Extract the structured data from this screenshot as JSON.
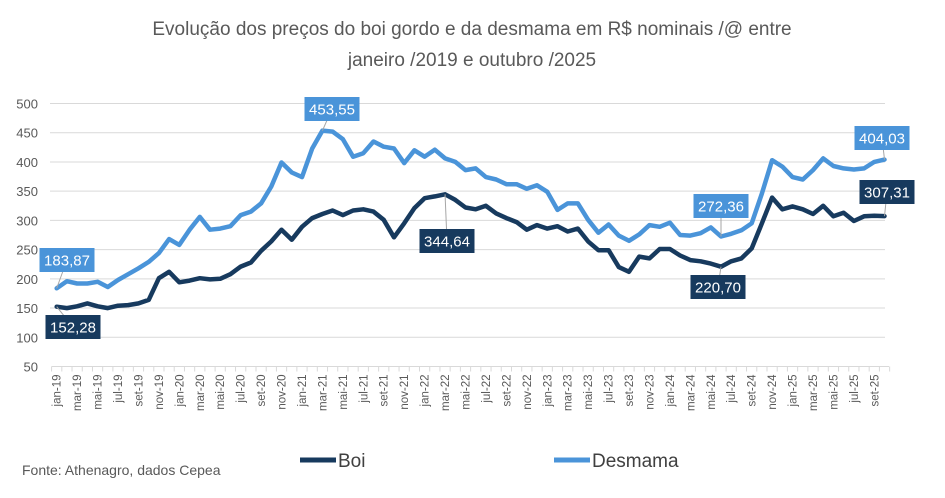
{
  "chart_data": {
    "type": "line",
    "title_line1": "Evolução dos preços do boi gordo e da desmama em R$ nominais /@ entre",
    "title_line2": "janeiro /2019 e outubro /2025",
    "xlabel": "",
    "ylabel": "",
    "ylim": [
      50,
      500
    ],
    "yticks": [
      "50",
      "100",
      "150",
      "200",
      "250",
      "300",
      "350",
      "400",
      "450",
      "500"
    ],
    "grid": true,
    "legend_placement": "bottom",
    "x": [
      "jan-19",
      "fev-19",
      "mar-19",
      "abr-19",
      "mai-19",
      "jun-19",
      "jul-19",
      "ago-19",
      "set-19",
      "out-19",
      "nov-19",
      "dez-19",
      "jan-20",
      "fev-20",
      "mar-20",
      "abr-20",
      "mai-20",
      "jun-20",
      "jul-20",
      "ago-20",
      "set-20",
      "out-20",
      "nov-20",
      "dez-20",
      "jan-21",
      "fev-21",
      "mar-21",
      "abr-21",
      "mai-21",
      "jun-21",
      "jul-21",
      "ago-21",
      "set-21",
      "out-21",
      "nov-21",
      "dez-21",
      "jan-22",
      "fev-22",
      "mar-22",
      "abr-22",
      "mai-22",
      "jun-22",
      "jul-22",
      "ago-22",
      "set-22",
      "out-22",
      "nov-22",
      "dez-22",
      "jan-23",
      "fev-23",
      "mar-23",
      "abr-23",
      "mai-23",
      "jun-23",
      "jul-23",
      "ago-23",
      "set-23",
      "out-23",
      "nov-23",
      "dez-23",
      "jan-24",
      "fev-24",
      "mar-24",
      "abr-24",
      "mai-24",
      "jun-24",
      "jul-24",
      "ago-24",
      "set-24",
      "out-24",
      "nov-24",
      "dez-24",
      "jan-25",
      "fev-25",
      "mar-25",
      "abr-25",
      "mai-25",
      "jun-25",
      "jul-25",
      "ago-25",
      "set-25",
      "out-25"
    ],
    "xtick_labels": [
      "jan-19",
      "mar-19",
      "mai-19",
      "jul-19",
      "set-19",
      "nov-19",
      "jan-20",
      "mar-20",
      "mai-20",
      "jul-20",
      "set-20",
      "nov-20",
      "jan-21",
      "mar-21",
      "mai-21",
      "jul-21",
      "set-21",
      "nov-21",
      "jan-22",
      "mar-22",
      "mai-22",
      "jul-22",
      "set-22",
      "nov-22",
      "jan-23",
      "mar-23",
      "mai-23",
      "jul-23",
      "set-23",
      "nov-23",
      "jan-24",
      "mar-24",
      "mai-24",
      "jul-24",
      "set-24",
      "nov-24",
      "jan-25",
      "mar-25",
      "mai-25",
      "jul-25",
      "set-25"
    ],
    "series": [
      {
        "name": "Boi",
        "color": "#173a5e",
        "values": [
          152.28,
          150,
          153,
          158,
          153,
          150,
          154,
          155,
          158,
          164,
          201,
          212,
          194,
          197,
          201,
          199,
          200,
          208,
          221,
          228,
          248,
          264,
          284,
          267,
          289,
          304,
          311,
          317,
          309,
          317,
          319,
          315,
          301,
          271,
          295,
          321,
          338,
          341,
          344.64,
          335,
          322,
          319,
          325,
          312,
          304,
          297,
          284,
          292,
          286,
          290,
          281,
          286,
          264,
          249,
          249,
          220,
          212,
          238,
          235,
          251,
          251,
          240,
          232,
          230,
          226,
          220.7,
          230,
          235,
          252,
          295,
          339,
          319,
          324,
          319,
          311,
          325,
          307,
          313,
          299,
          307,
          308,
          307.31
        ]
      },
      {
        "name": "Desmama",
        "color": "#4a94d9",
        "values": [
          183.87,
          196,
          192,
          192,
          195,
          186,
          198,
          208,
          218,
          229,
          244,
          268,
          258,
          284,
          306,
          284,
          286,
          290,
          309,
          315,
          329,
          358,
          399,
          382,
          374,
          423,
          453.55,
          452,
          439,
          409,
          415,
          435,
          426,
          423,
          398,
          420,
          409,
          421,
          406,
          400,
          386,
          389,
          374,
          370,
          362,
          362,
          354,
          360,
          349,
          318,
          329,
          329,
          301,
          279,
          293,
          274,
          265,
          276,
          292,
          289,
          296,
          275,
          274,
          278,
          288,
          272.36,
          277,
          283,
          295,
          346,
          403,
          392,
          374,
          370,
          386,
          406,
          393,
          389,
          387,
          389,
          400,
          404.03
        ]
      }
    ],
    "annotations": [
      {
        "series": 1,
        "index": 0,
        "text": "183,87"
      },
      {
        "series": 0,
        "index": 0,
        "text": "152,28"
      },
      {
        "series": 1,
        "index": 26,
        "text": "453,55"
      },
      {
        "series": 0,
        "index": 38,
        "text": "344,64"
      },
      {
        "series": 1,
        "index": 65,
        "text": "272,36"
      },
      {
        "series": 0,
        "index": 65,
        "text": "220,70"
      },
      {
        "series": 1,
        "index": 81,
        "text": "404,03"
      },
      {
        "series": 0,
        "index": 81,
        "text": "307,31"
      }
    ],
    "source": "Fonte: Athenagro, dados Cepea"
  }
}
